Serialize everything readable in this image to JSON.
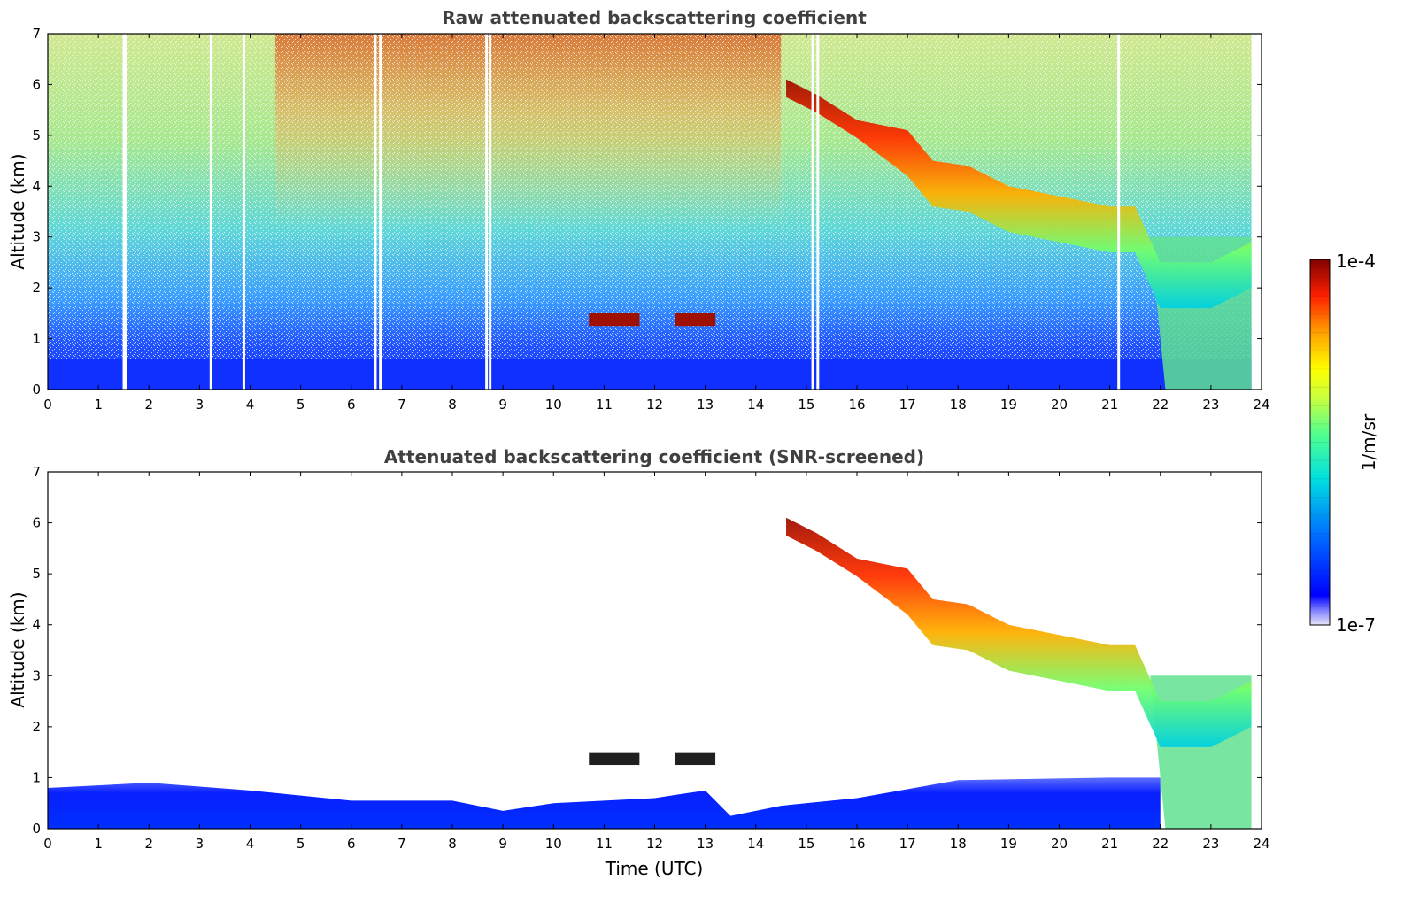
{
  "chart_data": [
    {
      "type": "heatmap",
      "title": "Raw attenuated backscattering coefficient",
      "ylabel": "Altitude (km)",
      "xlabel": "",
      "xlim": [
        0,
        24
      ],
      "ylim": [
        0,
        7
      ],
      "xticks": [
        "0",
        "1",
        "2",
        "3",
        "4",
        "5",
        "6",
        "7",
        "8",
        "9",
        "10",
        "11",
        "12",
        "13",
        "14",
        "15",
        "16",
        "17",
        "18",
        "19",
        "20",
        "21",
        "22",
        "23",
        "24"
      ],
      "yticks": [
        "0",
        "1",
        "2",
        "3",
        "4",
        "5",
        "6",
        "7"
      ],
      "cloud_top_trace_km": [
        [
          14.6,
          6.1
        ],
        [
          15.2,
          5.8
        ],
        [
          16.0,
          5.3
        ],
        [
          17.0,
          5.1
        ],
        [
          17.5,
          4.5
        ],
        [
          18.2,
          4.4
        ],
        [
          19.0,
          4.0
        ],
        [
          20.0,
          3.8
        ],
        [
          21.0,
          3.6
        ],
        [
          21.5,
          3.6
        ],
        [
          22.0,
          2.5
        ],
        [
          23.0,
          2.5
        ],
        [
          23.8,
          2.9
        ]
      ],
      "aerosol_layer_top_km": 0.6,
      "data_ends_at_hour": 23.8
    },
    {
      "type": "heatmap",
      "title": "Attenuated backscattering coefficient (SNR-screened)",
      "ylabel": "Altitude (km)",
      "xlabel": "Time (UTC)",
      "xlim": [
        0,
        24
      ],
      "ylim": [
        0,
        7
      ],
      "xticks": [
        "0",
        "1",
        "2",
        "3",
        "4",
        "5",
        "6",
        "7",
        "8",
        "9",
        "10",
        "11",
        "12",
        "13",
        "14",
        "15",
        "16",
        "17",
        "18",
        "19",
        "20",
        "21",
        "22",
        "23",
        "24"
      ],
      "yticks": [
        "0",
        "1",
        "2",
        "3",
        "4",
        "5",
        "6",
        "7"
      ],
      "boundary_layer_top_km": [
        [
          0,
          0.8
        ],
        [
          2,
          0.9
        ],
        [
          4,
          0.75
        ],
        [
          6,
          0.55
        ],
        [
          8,
          0.55
        ],
        [
          9,
          0.35
        ],
        [
          10,
          0.5
        ],
        [
          12,
          0.6
        ],
        [
          13,
          0.75
        ],
        [
          13.5,
          0.25
        ],
        [
          14.5,
          0.45
        ],
        [
          16,
          0.6
        ],
        [
          18,
          0.95
        ],
        [
          21,
          1.0
        ],
        [
          22,
          1.0
        ]
      ],
      "cloud_top_trace_km": [
        [
          14.6,
          6.1
        ],
        [
          15.2,
          5.8
        ],
        [
          16.0,
          5.3
        ],
        [
          17.0,
          5.1
        ],
        [
          17.5,
          4.5
        ],
        [
          18.2,
          4.4
        ],
        [
          19.0,
          4.0
        ],
        [
          20.0,
          3.8
        ],
        [
          21.0,
          3.6
        ],
        [
          21.5,
          3.6
        ],
        [
          22.0,
          2.5
        ],
        [
          23.0,
          2.5
        ],
        [
          23.8,
          2.9
        ]
      ]
    }
  ],
  "colorbar": {
    "label": "1/m/sr",
    "max_label": "1e-4",
    "min_label": "1e-7",
    "scale": "log",
    "colormap": [
      "#e6e6f7",
      "#0000ff",
      "#0080ff",
      "#00e5e5",
      "#40ff80",
      "#c0ff40",
      "#ffff00",
      "#ffa000",
      "#ff3000",
      "#c00000",
      "#800000"
    ]
  }
}
